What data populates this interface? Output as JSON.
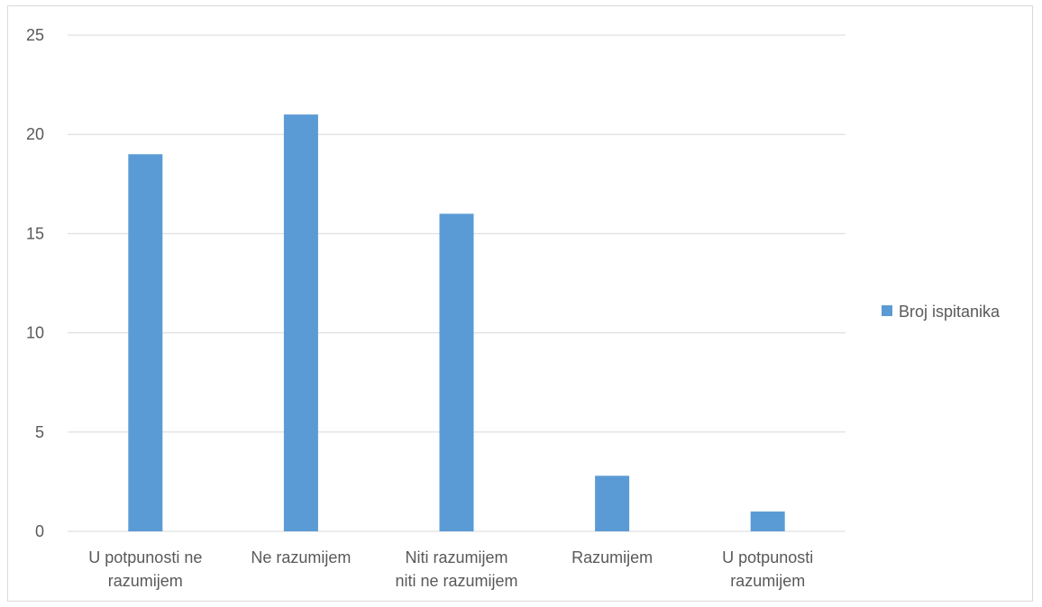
{
  "chart_data": {
    "type": "bar",
    "categories": [
      [
        "U potpunosti ne",
        "razumijem"
      ],
      [
        "Ne razumijem"
      ],
      [
        "Niti razumijem",
        "niti ne razumijem"
      ],
      [
        "Razumijem"
      ],
      [
        "U potpunosti",
        "razumijem"
      ]
    ],
    "series": [
      {
        "name": "Broj ispitanika",
        "values": [
          19,
          21,
          16,
          2.8,
          1
        ],
        "color": "#5b9bd5"
      }
    ],
    "ylim": [
      0,
      25
    ],
    "yticks": [
      0,
      5,
      10,
      15,
      20,
      25
    ],
    "grid": true,
    "legend_position": "right",
    "colors": {
      "gridline": "#d9d9d9",
      "text": "#595959"
    }
  }
}
